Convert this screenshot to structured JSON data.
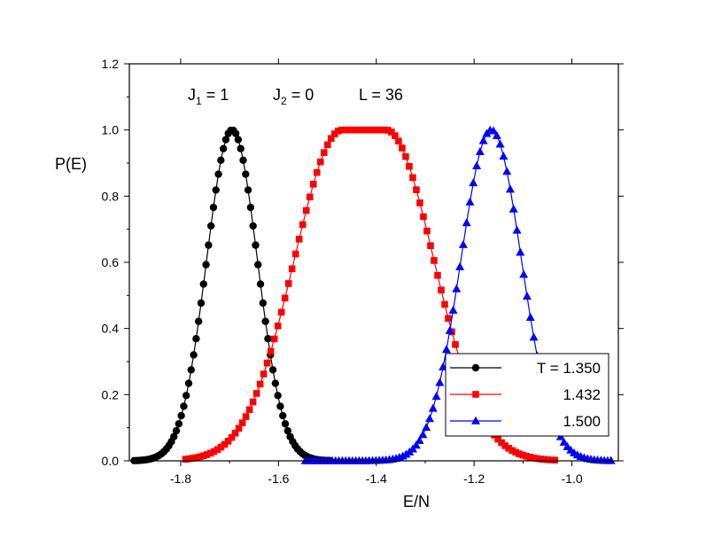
{
  "chart_data": {
    "type": "line",
    "xlabel": "E/N",
    "ylabel": "P(E)",
    "xlim": [
      -1.905,
      -0.905
    ],
    "ylim": [
      0,
      1.2
    ],
    "xticks": [
      -1.8,
      -1.6,
      -1.4,
      -1.2,
      -1.0
    ],
    "xtick_labels": [
      "-1.8",
      "-1.6",
      "-1.4",
      "-1.2",
      "-1.0"
    ],
    "yticks": [
      0.0,
      0.2,
      0.4,
      0.6,
      0.8,
      1.0,
      1.2
    ],
    "ytick_labels": [
      "0.0",
      "0.2",
      "0.4",
      "0.6",
      "0.8",
      "1.0",
      "1.2"
    ],
    "annotation": {
      "j1_sym": "J",
      "j1_sub": "1",
      "j1_val": " = 1",
      "j2_sym": "J",
      "j2_sub": "2",
      "j2_val": " = 0",
      "l_text": "L = 36"
    },
    "legend_position": "bottom-right",
    "legend_entries": [
      "T = 1.350",
      "1.432",
      "1.500"
    ],
    "series": [
      {
        "name": "T = 1.350",
        "color": "#000000",
        "marker": "circle",
        "peak": -1.695,
        "sigma": 0.052,
        "xmin": -1.895,
        "xmax": -1.495,
        "n": 80
      },
      {
        "name": "1.432",
        "color": "#ff0000",
        "marker": "square",
        "peak": -1.425,
        "sigma": 0.098,
        "xmin": -1.79,
        "xmax": -1.035,
        "n": 105,
        "flatten": 0.045
      },
      {
        "name": "1.500",
        "color": "#0000ff",
        "marker": "triangle",
        "peak": -1.165,
        "sigma": 0.062,
        "xmin": -1.545,
        "xmax": -0.92,
        "n": 92
      }
    ]
  }
}
